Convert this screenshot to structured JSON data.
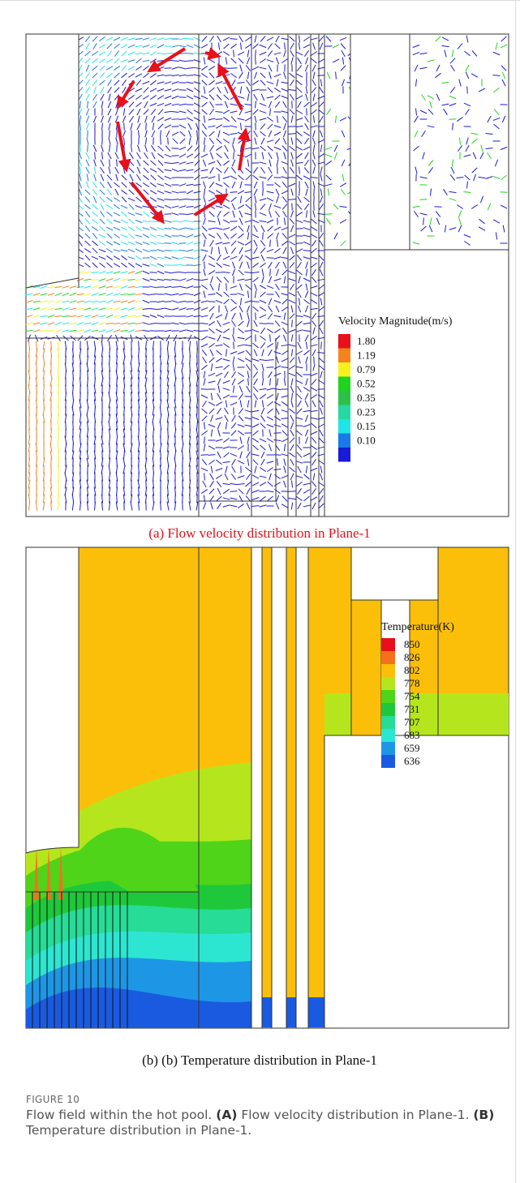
{
  "panel_a": {
    "legend": {
      "title": "Velocity Magnitude(m/s)",
      "entries": [
        {
          "label": "1.80",
          "color": "#e8101a"
        },
        {
          "label": "1.19",
          "color": "#f5841f"
        },
        {
          "label": "0.79",
          "color": "#f7f21c"
        },
        {
          "label": "0.52",
          "color": "#1fd41f"
        },
        {
          "label": "0.35",
          "color": "#2cc24a"
        },
        {
          "label": "0.23",
          "color": "#26d9a0"
        },
        {
          "label": "0.15",
          "color": "#1ee6e6"
        },
        {
          "label": "0.10",
          "color": "#1a78e8"
        },
        {
          "label": "",
          "color": "#1a1ad9"
        }
      ]
    },
    "caption": "(a)  Flow velocity distribution in Plane-1"
  },
  "panel_b": {
    "legend": {
      "title": "Temperature(K)",
      "entries": [
        {
          "label": "850",
          "color": "#e8101a"
        },
        {
          "label": "826",
          "color": "#f5701c"
        },
        {
          "label": "802",
          "color": "#fbbf0a"
        },
        {
          "label": "778",
          "color": "#b5e61d"
        },
        {
          "label": "754",
          "color": "#4fd41a"
        },
        {
          "label": "731",
          "color": "#1ec83a"
        },
        {
          "label": "707",
          "color": "#26dc96"
        },
        {
          "label": "683",
          "color": "#2ce6d2"
        },
        {
          "label": "659",
          "color": "#1e96e6"
        },
        {
          "label": "636",
          "color": "#1a5ae0"
        }
      ]
    },
    "caption": "(b)  (b) Temperature distribution in Plane-1"
  },
  "figure": {
    "label": "FIGURE 10",
    "caption": [
      "Flow field within the hot pool. ",
      "(A)",
      " Flow velocity distribution in Plane-1. ",
      "(B)",
      " Temperature distribution in Plane-1."
    ]
  }
}
